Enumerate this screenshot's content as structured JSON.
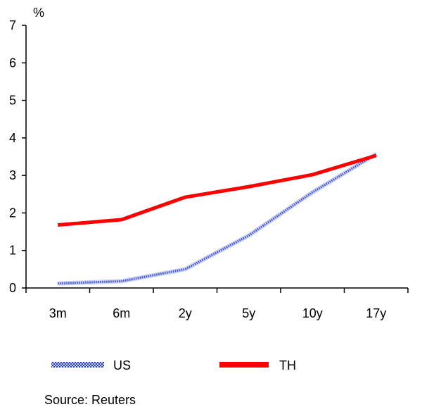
{
  "chart_data": {
    "type": "line",
    "categories": [
      "3m",
      "6m",
      "2y",
      "5y",
      "10y",
      "17y"
    ],
    "ylabel": "%",
    "ylim": [
      0,
      7
    ],
    "yticks": [
      0,
      1,
      2,
      3,
      4,
      5,
      6,
      7
    ],
    "grid": false,
    "legend": "bottom",
    "series": [
      {
        "name": "US",
        "values": [
          0.12,
          0.18,
          0.5,
          1.4,
          2.55,
          3.57
        ],
        "color": "#3b4fd0",
        "style": "dotted"
      },
      {
        "name": "TH",
        "values": [
          1.68,
          1.82,
          2.42,
          2.7,
          3.02,
          3.53
        ],
        "color": "#ff0000",
        "style": "solid"
      }
    ],
    "source": "Source: Reuters"
  }
}
